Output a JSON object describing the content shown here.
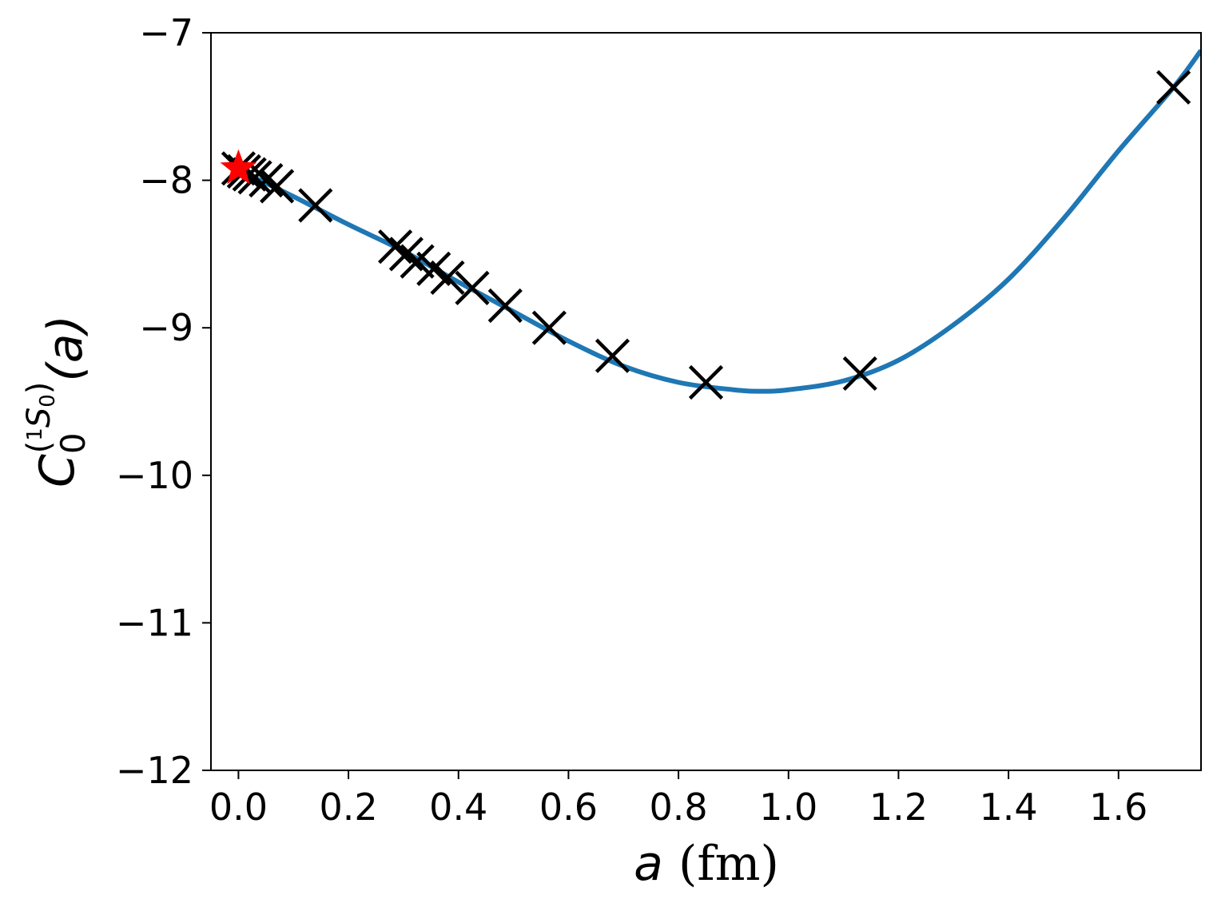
{
  "chart_data": {
    "type": "scatter",
    "xlabel": {
      "var": "a",
      "unit": " (fm)"
    },
    "ylabel": {
      "base": "C",
      "sub": "0",
      "sup_paren_open": "(",
      "sup_num": "1",
      "sup_sym": "S",
      "sup_sub": "0",
      "sup_paren_close": ")",
      "arg": "(a)"
    },
    "xlim": [
      -0.05,
      1.75
    ],
    "ylim": [
      -12,
      -7
    ],
    "xticks": [
      0.0,
      0.2,
      0.4,
      0.6,
      0.8,
      1.0,
      1.2,
      1.4,
      1.6
    ],
    "xtick_labels": [
      "0.0",
      "0.2",
      "0.4",
      "0.6",
      "0.8",
      "1.0",
      "1.2",
      "1.4",
      "1.6"
    ],
    "yticks": [
      -7,
      -8,
      -9,
      -10,
      -11,
      -12
    ],
    "ytick_labels": [
      "−7",
      "−8",
      "−9",
      "−10",
      "−11",
      "−12"
    ],
    "grid": false,
    "series": [
      {
        "kind": "points",
        "marker": "x",
        "color": "#000000",
        "x": [
          0.0,
          0.01,
          0.02,
          0.03,
          0.05,
          0.07,
          0.14,
          0.285,
          0.305,
          0.325,
          0.355,
          0.38,
          0.425,
          0.485,
          0.565,
          0.68,
          0.85,
          1.13,
          1.7
        ],
        "y": [
          -7.92,
          -7.94,
          -7.96,
          -7.98,
          -8.0,
          -8.04,
          -8.17,
          -8.45,
          -8.5,
          -8.55,
          -8.6,
          -8.66,
          -8.73,
          -8.85,
          -9.0,
          -9.19,
          -9.37,
          -9.31,
          -7.37
        ]
      },
      {
        "kind": "line",
        "color": "#1f77b4",
        "x": [
          0.0,
          0.1,
          0.2,
          0.3,
          0.4,
          0.5,
          0.6,
          0.7,
          0.8,
          0.9,
          0.95,
          1.0,
          1.1,
          1.2,
          1.3,
          1.4,
          1.5,
          1.6,
          1.7,
          1.75
        ],
        "y": [
          -7.93,
          -8.11,
          -8.3,
          -8.48,
          -8.69,
          -8.89,
          -9.09,
          -9.26,
          -9.37,
          -9.42,
          -9.43,
          -9.42,
          -9.36,
          -9.22,
          -8.98,
          -8.67,
          -8.26,
          -7.8,
          -7.37,
          -7.12
        ]
      },
      {
        "kind": "points",
        "marker": "star",
        "color": "#ff0000",
        "x": [
          0.0
        ],
        "y": [
          -7.92
        ]
      }
    ]
  }
}
